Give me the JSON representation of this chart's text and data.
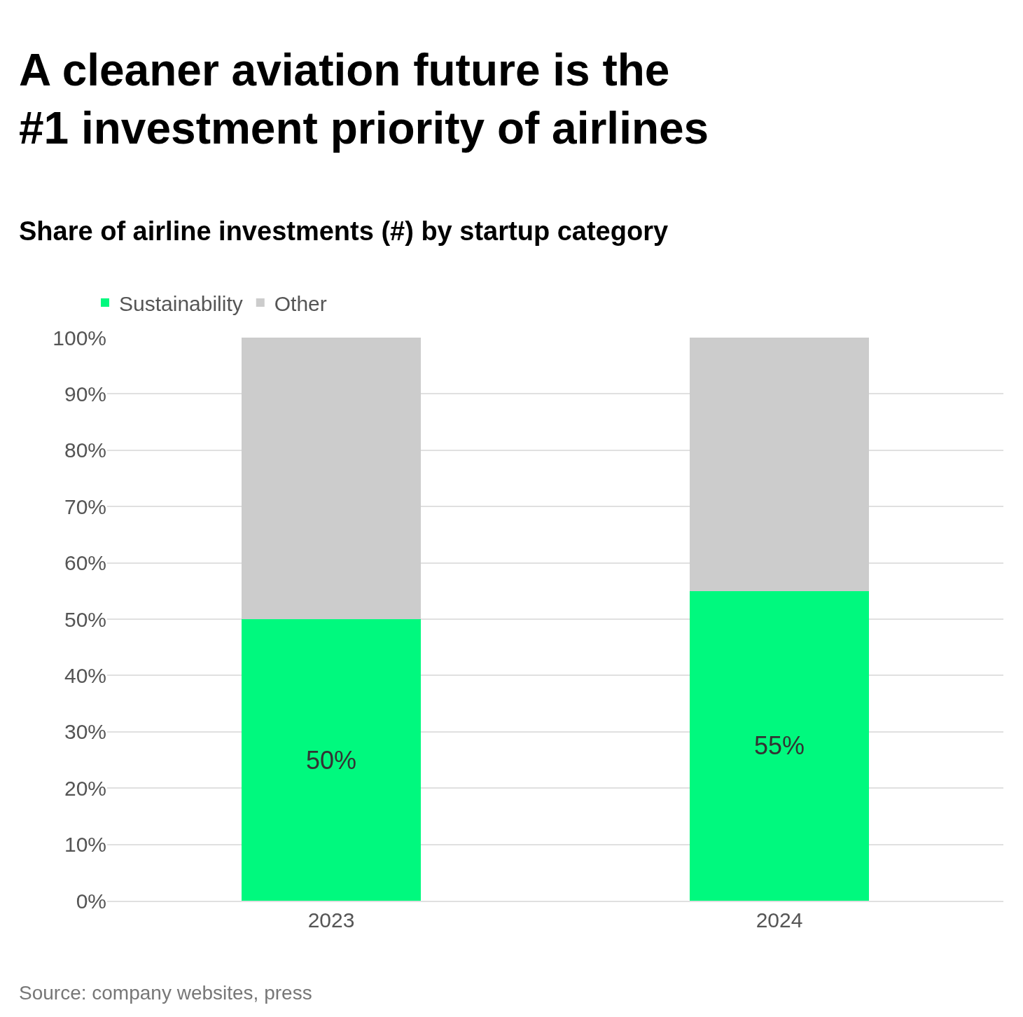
{
  "chart_data": {
    "type": "bar",
    "title": "A cleaner aviation future is the\n#1 investment priority of airlines",
    "subtitle": "Share of airline investments (#) by startup category",
    "categories": [
      "2023",
      "2024"
    ],
    "stacked": true,
    "series": [
      {
        "name": "Sustainability",
        "color": "#00f97e",
        "values": [
          50,
          55
        ],
        "value_labels": [
          "50%",
          "55%"
        ]
      },
      {
        "name": "Other",
        "color": "#cccccc",
        "values": [
          50,
          45
        ]
      }
    ],
    "ylim": [
      0,
      100
    ],
    "yticks": [
      {
        "value": 0,
        "label": "0%"
      },
      {
        "value": 10,
        "label": "10%"
      },
      {
        "value": 20,
        "label": "20%"
      },
      {
        "value": 30,
        "label": "30%"
      },
      {
        "value": 40,
        "label": "40%"
      },
      {
        "value": 50,
        "label": "50%"
      },
      {
        "value": 60,
        "label": "60%"
      },
      {
        "value": 70,
        "label": "70%"
      },
      {
        "value": 80,
        "label": "80%"
      },
      {
        "value": 90,
        "label": "90%"
      },
      {
        "value": 100,
        "label": "100%"
      }
    ],
    "grid": "y",
    "legend": "top left",
    "annotations": [
      "Source: company websites, press"
    ]
  }
}
